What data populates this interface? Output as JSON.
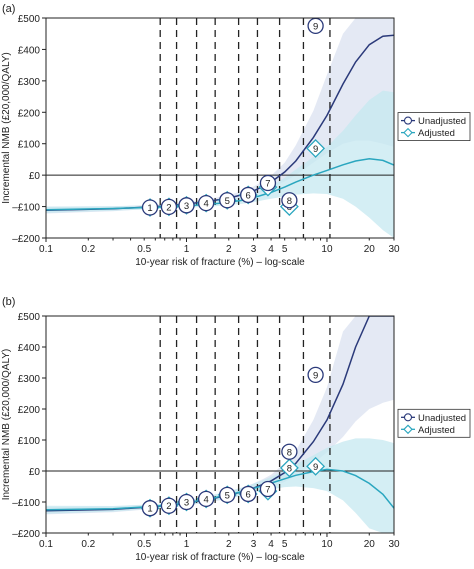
{
  "chart_data": [
    {
      "type": "line",
      "panel_label": "(a)",
      "xlabel": "10-year risk of fracture (%) – log-scale",
      "ylabel": "Incremental NMB (£20,000/QALY)",
      "x_scale": "log",
      "xlim": [
        0.1,
        30
      ],
      "ylim": [
        -200,
        500
      ],
      "x_ticks": [
        0.1,
        0.2,
        0.5,
        1,
        2,
        3,
        4,
        5,
        10,
        20,
        30
      ],
      "x_tick_labels": [
        "0.1",
        "0.2",
        "0.5",
        "1",
        "2",
        "3",
        "4",
        "5",
        "10",
        "20",
        "30"
      ],
      "y_ticks": [
        -200,
        -100,
        0,
        100,
        200,
        300,
        400,
        500
      ],
      "y_tick_labels": [
        "–£200",
        "–£100",
        "£0",
        "£100",
        "£200",
        "£300",
        "£400",
        "£500"
      ],
      "vlines": [
        0.65,
        0.85,
        1.18,
        1.6,
        2.35,
        3.2,
        4.6,
        6.8,
        10.5
      ],
      "legend": {
        "position": "right",
        "entries": [
          "Unadjusted",
          "Adjusted"
        ]
      },
      "series": [
        {
          "name": "Unadjusted",
          "color": "#2b3a7a",
          "band_color": "#dfe5f2",
          "marker": "circle",
          "x": [
            0.1,
            0.3,
            0.6,
            1,
            1.5,
            2,
            2.5,
            3,
            3.5,
            4,
            5,
            6,
            8,
            10,
            13,
            16,
            20,
            25,
            30
          ],
          "y": [
            -112,
            -107,
            -100,
            -92,
            -82,
            -73,
            -62,
            -50,
            -36,
            -22,
            10,
            45,
            120,
            190,
            290,
            360,
            415,
            442,
            445
          ],
          "lower": [
            -122,
            -115,
            -106,
            -98,
            -90,
            -82,
            -73,
            -63,
            -52,
            -42,
            -20,
            0,
            40,
            70,
            100,
            110,
            110,
            100,
            90
          ],
          "upper": [
            -100,
            -99,
            -94,
            -86,
            -74,
            -64,
            -50,
            -36,
            -20,
            -2,
            40,
            95,
            205,
            320,
            450,
            500,
            500,
            500,
            500
          ],
          "points": [
            {
              "label": "1",
              "x": 0.55,
              "y": -103
            },
            {
              "label": "2",
              "x": 0.75,
              "y": -101
            },
            {
              "label": "3",
              "x": 1.0,
              "y": -96
            },
            {
              "label": "4",
              "x": 1.38,
              "y": -89
            },
            {
              "label": "5",
              "x": 1.95,
              "y": -80
            },
            {
              "label": "6",
              "x": 2.75,
              "y": -63
            },
            {
              "label": "7",
              "x": 3.8,
              "y": -25
            },
            {
              "label": "8",
              "x": 5.4,
              "y": -80
            },
            {
              "label": "9",
              "x": 8.3,
              "y": 475
            }
          ]
        },
        {
          "name": "Adjusted",
          "color": "#2aa6bf",
          "band_color": "#c6e8f0",
          "marker": "diamond",
          "x": [
            0.1,
            0.3,
            0.6,
            1,
            1.5,
            2,
            2.5,
            3,
            3.5,
            4,
            5,
            6,
            8,
            10,
            13,
            16,
            20,
            25,
            30
          ],
          "y": [
            -110,
            -106,
            -102,
            -98,
            -92,
            -86,
            -80,
            -72,
            -63,
            -55,
            -38,
            -22,
            0,
            15,
            33,
            45,
            52,
            47,
            32
          ],
          "lower": [
            -120,
            -113,
            -108,
            -104,
            -100,
            -95,
            -91,
            -86,
            -80,
            -75,
            -68,
            -62,
            -58,
            -60,
            -75,
            -100,
            -135,
            -175,
            -200
          ],
          "upper": [
            -100,
            -99,
            -96,
            -92,
            -84,
            -77,
            -69,
            -58,
            -46,
            -35,
            -8,
            18,
            58,
            90,
            141,
            190,
            239,
            269,
            264
          ],
          "points": [
            {
              "label": "1",
              "x": 0.55,
              "y": -103
            },
            {
              "label": "2",
              "x": 0.75,
              "y": -101
            },
            {
              "label": "3",
              "x": 1.0,
              "y": -96
            },
            {
              "label": "4",
              "x": 1.38,
              "y": -89
            },
            {
              "label": "5",
              "x": 1.95,
              "y": -80
            },
            {
              "label": "6",
              "x": 2.75,
              "y": -63
            },
            {
              "label": "7",
              "x": 3.8,
              "y": -38
            },
            {
              "label": "8",
              "x": 5.4,
              "y": -100
            },
            {
              "label": "9",
              "x": 8.3,
              "y": 85
            }
          ]
        }
      ]
    },
    {
      "type": "line",
      "panel_label": "(b)",
      "xlabel": "10-year risk of fracture (%) – log-scale",
      "ylabel": "Incremental NMB (£20,000/QALY)",
      "x_scale": "log",
      "xlim": [
        0.1,
        30
      ],
      "ylim": [
        -200,
        500
      ],
      "x_ticks": [
        0.1,
        0.2,
        0.5,
        1,
        2,
        3,
        4,
        5,
        10,
        20,
        30
      ],
      "x_tick_labels": [
        "0.1",
        "0.2",
        "0.5",
        "1",
        "2",
        "3",
        "4",
        "5",
        "10",
        "20",
        "30"
      ],
      "y_ticks": [
        -200,
        -100,
        0,
        100,
        200,
        300,
        400,
        500
      ],
      "y_tick_labels": [
        "–£200",
        "–£100",
        "£0",
        "£100",
        "£200",
        "£300",
        "£400",
        "£500"
      ],
      "vlines": [
        0.65,
        0.85,
        1.18,
        1.6,
        2.35,
        3.2,
        4.6,
        6.8,
        10.5
      ],
      "legend": {
        "position": "right",
        "entries": [
          "Unadjusted",
          "Adjusted"
        ]
      },
      "series": [
        {
          "name": "Unadjusted",
          "color": "#2b3a7a",
          "band_color": "#dfe5f2",
          "marker": "circle",
          "x": [
            0.1,
            0.3,
            0.6,
            1,
            1.5,
            2,
            2.5,
            3,
            3.5,
            4,
            5,
            6,
            8,
            10,
            13,
            16,
            20,
            25,
            30
          ],
          "y": [
            -128,
            -124,
            -115,
            -104,
            -90,
            -78,
            -67,
            -55,
            -43,
            -32,
            -5,
            25,
            95,
            165,
            280,
            400,
            500,
            500,
            500
          ],
          "lower": [
            -140,
            -133,
            -122,
            -112,
            -100,
            -89,
            -80,
            -70,
            -60,
            -52,
            -35,
            -15,
            25,
            60,
            110,
            160,
            200,
            220,
            230
          ],
          "upper": [
            -116,
            -115,
            -108,
            -96,
            -80,
            -67,
            -54,
            -40,
            -26,
            -12,
            25,
            65,
            165,
            270,
            450,
            500,
            500,
            500,
            500
          ],
          "points": [
            {
              "label": "1",
              "x": 0.55,
              "y": -120
            },
            {
              "label": "2",
              "x": 0.75,
              "y": -112
            },
            {
              "label": "3",
              "x": 1.0,
              "y": -100
            },
            {
              "label": "4",
              "x": 1.38,
              "y": -90
            },
            {
              "label": "5",
              "x": 1.95,
              "y": -77
            },
            {
              "label": "6",
              "x": 2.75,
              "y": -74
            },
            {
              "label": "7",
              "x": 3.8,
              "y": -58
            },
            {
              "label": "8",
              "x": 5.4,
              "y": 62
            },
            {
              "label": "9",
              "x": 8.3,
              "y": 310
            }
          ]
        },
        {
          "name": "Adjusted",
          "color": "#2aa6bf",
          "band_color": "#c6e8f0",
          "marker": "diamond",
          "x": [
            0.1,
            0.3,
            0.6,
            1,
            1.5,
            2,
            2.5,
            3,
            3.5,
            4,
            5,
            6,
            8,
            10,
            13,
            16,
            20,
            25,
            30
          ],
          "y": [
            -125,
            -122,
            -114,
            -103,
            -88,
            -76,
            -66,
            -56,
            -47,
            -39,
            -25,
            -14,
            -2,
            5,
            0,
            -15,
            -40,
            -75,
            -120
          ],
          "lower": [
            -138,
            -131,
            -121,
            -111,
            -98,
            -87,
            -79,
            -71,
            -64,
            -59,
            -52,
            -50,
            -55,
            -65,
            -95,
            -135,
            -185,
            -200,
            -200
          ],
          "upper": [
            -112,
            -113,
            -107,
            -95,
            -78,
            -65,
            -53,
            -41,
            -30,
            -19,
            2,
            22,
            51,
            75,
            95,
            105,
            105,
            100,
            90
          ],
          "points": [
            {
              "label": "1",
              "x": 0.55,
              "y": -120
            },
            {
              "label": "2",
              "x": 0.75,
              "y": -112
            },
            {
              "label": "3",
              "x": 1.0,
              "y": -100
            },
            {
              "label": "4",
              "x": 1.38,
              "y": -90
            },
            {
              "label": "5",
              "x": 1.95,
              "y": -77
            },
            {
              "label": "6",
              "x": 2.75,
              "y": -74
            },
            {
              "label": "7",
              "x": 3.8,
              "y": -65
            },
            {
              "label": "8",
              "x": 5.4,
              "y": 10
            },
            {
              "label": "9",
              "x": 8.3,
              "y": 15
            }
          ]
        }
      ]
    }
  ]
}
